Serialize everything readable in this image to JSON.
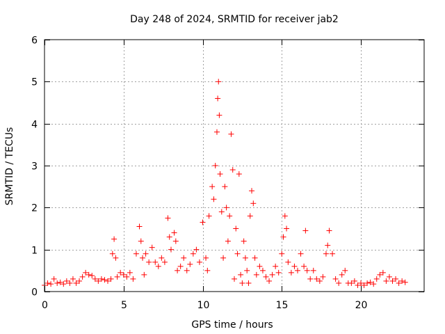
{
  "chart_data": {
    "type": "scatter",
    "title": "Day 248 of 2024, SRMTID for receiver jab2",
    "xlabel": "GPS time / hours",
    "ylabel": "SRMTID / TECUs",
    "xlim": [
      0,
      24
    ],
    "ylim": [
      0,
      6
    ],
    "xticks": [
      0,
      5,
      10,
      15,
      20
    ],
    "yticks": [
      0,
      1,
      2,
      3,
      4,
      5,
      6
    ],
    "grid": true,
    "marker": "+",
    "color": "#ff0000",
    "series": [
      {
        "name": "SRMTID",
        "x": [
          0.0,
          0.2,
          0.4,
          0.6,
          0.8,
          1.0,
          1.2,
          1.4,
          1.6,
          1.8,
          2.0,
          2.2,
          2.4,
          2.6,
          2.8,
          3.0,
          3.2,
          3.4,
          3.6,
          3.8,
          4.0,
          4.2,
          4.3,
          4.4,
          4.5,
          4.6,
          4.8,
          5.0,
          5.2,
          5.4,
          5.6,
          5.8,
          6.0,
          6.1,
          6.2,
          6.3,
          6.4,
          6.6,
          6.8,
          7.0,
          7.2,
          7.4,
          7.6,
          7.8,
          7.9,
          8.0,
          8.2,
          8.3,
          8.4,
          8.6,
          8.8,
          9.0,
          9.2,
          9.4,
          9.6,
          9.8,
          10.0,
          10.2,
          10.3,
          10.4,
          10.6,
          10.7,
          10.8,
          10.9,
          10.95,
          11.0,
          11.05,
          11.1,
          11.2,
          11.3,
          11.4,
          11.5,
          11.6,
          11.7,
          11.8,
          11.9,
          12.0,
          12.1,
          12.2,
          12.3,
          12.4,
          12.5,
          12.6,
          12.7,
          12.8,
          12.9,
          13.0,
          13.1,
          13.2,
          13.3,
          13.4,
          13.6,
          13.8,
          14.0,
          14.2,
          14.4,
          14.6,
          14.8,
          15.0,
          15.1,
          15.2,
          15.3,
          15.4,
          15.6,
          15.8,
          16.0,
          16.2,
          16.4,
          16.5,
          16.6,
          16.8,
          17.0,
          17.2,
          17.4,
          17.6,
          17.8,
          17.9,
          18.0,
          18.2,
          18.4,
          18.6,
          18.8,
          19.0,
          19.2,
          19.4,
          19.6,
          19.8,
          20.0,
          20.2,
          20.4,
          20.6,
          20.8,
          21.0,
          21.2,
          21.4,
          21.6,
          21.8,
          22.0,
          22.2,
          22.4,
          22.6,
          22.8
        ],
        "y": [
          0.15,
          0.2,
          0.18,
          0.3,
          0.2,
          0.22,
          0.18,
          0.25,
          0.2,
          0.3,
          0.2,
          0.25,
          0.35,
          0.45,
          0.4,
          0.38,
          0.3,
          0.25,
          0.3,
          0.28,
          0.25,
          0.3,
          0.9,
          1.25,
          0.8,
          0.35,
          0.45,
          0.4,
          0.35,
          0.45,
          0.3,
          0.9,
          1.55,
          1.2,
          0.8,
          0.4,
          0.9,
          0.7,
          1.05,
          0.7,
          0.6,
          0.8,
          0.7,
          1.75,
          1.3,
          1.0,
          1.4,
          1.2,
          0.5,
          0.6,
          0.8,
          0.5,
          0.65,
          0.9,
          1.0,
          0.7,
          1.65,
          0.8,
          0.5,
          1.8,
          2.5,
          2.2,
          3.0,
          3.8,
          4.6,
          5.0,
          4.2,
          2.8,
          1.9,
          0.8,
          2.5,
          2.0,
          1.2,
          1.8,
          3.75,
          2.9,
          0.3,
          1.5,
          0.9,
          2.8,
          0.4,
          0.2,
          1.2,
          0.8,
          0.5,
          0.2,
          1.8,
          2.4,
          2.1,
          0.8,
          0.4,
          0.6,
          0.5,
          0.35,
          0.25,
          0.4,
          0.6,
          0.45,
          0.9,
          1.3,
          1.8,
          1.5,
          0.7,
          0.45,
          0.6,
          0.5,
          0.9,
          0.6,
          1.45,
          0.5,
          0.3,
          0.5,
          0.3,
          0.25,
          0.35,
          0.9,
          1.1,
          1.45,
          0.9,
          0.3,
          0.2,
          0.4,
          0.5,
          0.2,
          0.2,
          0.25,
          0.15,
          0.2,
          0.15,
          0.2,
          0.22,
          0.18,
          0.3,
          0.4,
          0.45,
          0.25,
          0.35,
          0.25,
          0.3,
          0.2,
          0.25,
          0.22
        ]
      }
    ]
  }
}
